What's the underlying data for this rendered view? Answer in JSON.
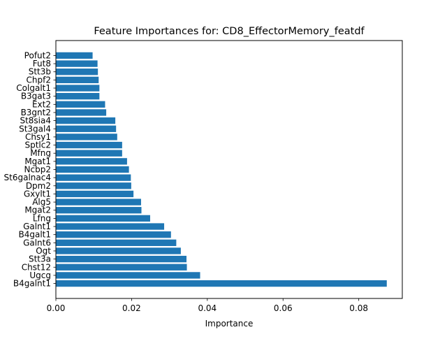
{
  "chart_data": {
    "type": "bar",
    "orientation": "horizontal",
    "title": "Feature Importances for: CD8_EffectorMemory_featdf",
    "xlabel": "Importance",
    "ylabel": "",
    "xlim": [
      0,
      0.0915
    ],
    "xticks": [
      0.0,
      0.02,
      0.04,
      0.06,
      0.08
    ],
    "xtick_labels": [
      "0.00",
      "0.02",
      "0.04",
      "0.06",
      "0.08"
    ],
    "grid": false,
    "legend": "none",
    "bar_color": "#1f77b4",
    "categories": [
      "B4galnt1",
      "Ugcg",
      "Chst12",
      "Stt3a",
      "Ogt",
      "Galnt6",
      "B4galt1",
      "Galnt1",
      "Lfng",
      "Mgat2",
      "Alg5",
      "Gxylt1",
      "Dpm2",
      "St6galnac4",
      "Ncbp2",
      "Mgat1",
      "Mfng",
      "Sptlc2",
      "Chsy1",
      "St3gal4",
      "St8sia4",
      "B3gnt2",
      "Ext2",
      "B3gat3",
      "Colgalt1",
      "Chpf2",
      "Stt3b",
      "Fut8",
      "Pofut2"
    ],
    "values": [
      0.0874,
      0.0381,
      0.0346,
      0.0345,
      0.033,
      0.0318,
      0.0304,
      0.0286,
      0.0249,
      0.0226,
      0.0225,
      0.0205,
      0.0199,
      0.0198,
      0.0193,
      0.0188,
      0.0175,
      0.0175,
      0.0162,
      0.0159,
      0.0157,
      0.0133,
      0.013,
      0.0115,
      0.0115,
      0.0113,
      0.0111,
      0.011,
      0.0097
    ]
  }
}
